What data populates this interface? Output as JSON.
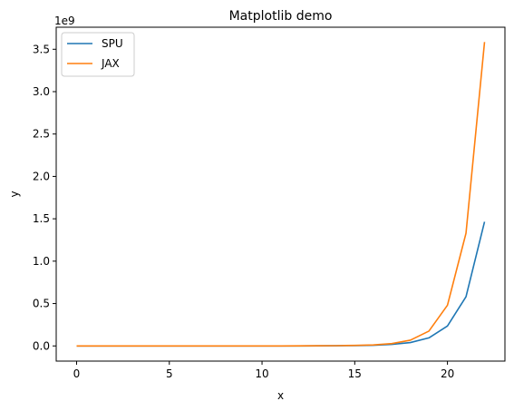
{
  "chart_data": {
    "type": "line",
    "title": "Matplotlib demo",
    "xlabel": "x",
    "ylabel": "y",
    "y_offset_label": "1e9",
    "xlim": [
      -1.1,
      23.1
    ],
    "ylim": [
      -0.179,
      3.76
    ],
    "x_ticks": [
      0,
      5,
      10,
      15,
      20
    ],
    "x_tick_labels": [
      "0",
      "5",
      "10",
      "15",
      "20"
    ],
    "y_ticks": [
      0.0,
      0.5,
      1.0,
      1.5,
      2.0,
      2.5,
      3.0,
      3.5
    ],
    "y_tick_labels": [
      "0.0",
      "0.5",
      "1.0",
      "1.5",
      "2.0",
      "2.5",
      "3.0",
      "3.5"
    ],
    "grid": false,
    "legend_position": "upper-left",
    "x": [
      0,
      1,
      2,
      3,
      4,
      5,
      6,
      7,
      8,
      9,
      10,
      11,
      12,
      13,
      14,
      15,
      16,
      17,
      18,
      19,
      20,
      21,
      22
    ],
    "series": [
      {
        "name": "SPU",
        "color": "#1f77b4",
        "values": [
          0,
          0,
          0,
          0,
          0,
          0,
          0,
          0,
          0,
          0,
          0,
          0,
          0,
          0.001,
          0.002,
          0.004,
          0.008,
          0.018,
          0.04,
          0.095,
          0.235,
          0.58,
          1.465
        ]
      },
      {
        "name": "JAX",
        "color": "#ff7f0e",
        "values": [
          0,
          0,
          0,
          0,
          0,
          0,
          0,
          0,
          0,
          0,
          0,
          0,
          0.001,
          0.002,
          0.003,
          0.006,
          0.012,
          0.028,
          0.068,
          0.175,
          0.48,
          1.33,
          3.585
        ]
      }
    ]
  }
}
